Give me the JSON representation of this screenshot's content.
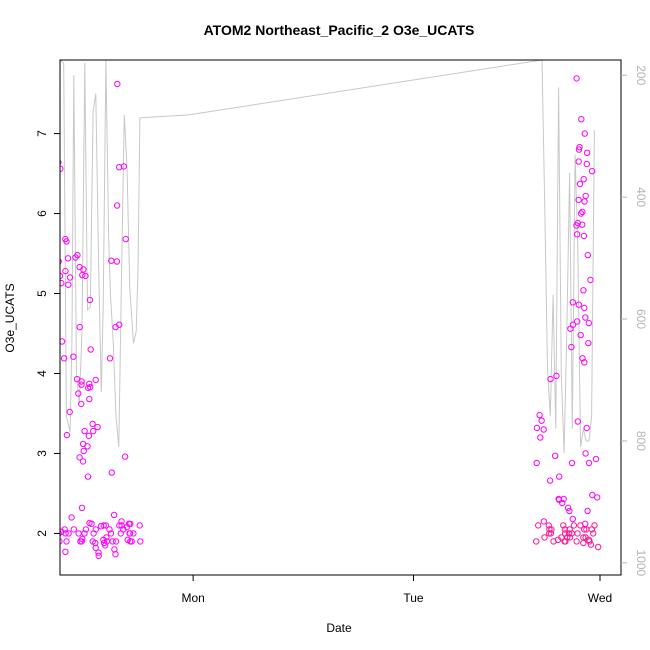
{
  "chart_data": {
    "type": "scatter",
    "title": "ATOM2 Northeast_Pacific_2 O3e_UCATS",
    "xlabel": "Date",
    "ylabel": "O3e_UCATS",
    "x_ticks": [
      "Mon",
      "Tue",
      "Wed"
    ],
    "x_range_hours": [
      -14.5,
      46.6
    ],
    "y_left_ticks": [
      "2",
      "3",
      "4",
      "5",
      "6",
      "7"
    ],
    "y_left_range": [
      1.48,
      7.92
    ],
    "y_right_ticks": [
      "200",
      "400",
      "600",
      "800",
      "1000"
    ],
    "y_right_range_inverted": [
      175,
      1020
    ],
    "grid": false,
    "colors": {
      "points": "#ff00ff",
      "points_dense": "#ff1493",
      "pressure_line": "#c8c8c8",
      "axis": "#000000",
      "right_axis": "#b4b4b4"
    },
    "series": [
      {
        "kind": "points",
        "axis": "left",
        "x_hours": [
          -14.3,
          -14.2,
          -14.1,
          -14.0,
          -14.0,
          -13.9,
          -13.8,
          -13.7,
          -13.6,
          -13.6,
          -13.5,
          -13.4,
          -13.3,
          -13.3,
          -13.2,
          -13.1,
          -13.0,
          -12.9,
          -12.8,
          -12.7,
          -12.6,
          -12.5,
          -12.4,
          -12.3,
          -12.2,
          -12.0,
          -11.9,
          -11.8,
          -11.7,
          -11.7,
          -11.6,
          -11.5,
          -11.5,
          -11.4,
          -11.3,
          -11.2,
          -11.1,
          -11.0,
          -10.9,
          -10.8,
          -10.7,
          -10.6,
          -10.6,
          -10.5,
          -10.4,
          -10.3,
          -10.2,
          -10.1,
          -10.0,
          -9.9,
          -9.8,
          -9.7,
          -9.6,
          -9.5,
          -9.4,
          -9.3,
          -9.2,
          -9.1,
          -9.0,
          -8.9,
          -8.8,
          -8.7,
          -8.6,
          -8.5,
          -8.4,
          -8.3,
          -8.2,
          -8.1,
          -8.0,
          -7.9,
          -7.8,
          -7.7,
          -7.6,
          -7.5,
          -7.4,
          -7.3,
          -7.2,
          -7.1,
          -7.0,
          -6.9,
          -6.8,
          -6.7,
          -6.6,
          -6.5,
          -6.4,
          -6.3,
          -6.2,
          -6.1,
          -6.0,
          -5.9,
          -5.8,
          -5.7,
          -5.6,
          -5.5,
          -5.4,
          -5.3,
          -5.2,
          -5.1,
          -5.0,
          -4.9,
          -4.8,
          -4.7,
          -4.6,
          -4.5,
          -4.4,
          -4.3,
          -4.2,
          -4.1,
          -4.0,
          -3.9,
          -3.8,
          -3.7,
          -3.6,
          -3.5,
          -3.4,
          -3.3,
          -3.2,
          -3.1,
          -3.0,
          -2.9,
          -2.8,
          -2.7,
          -2.6,
          -2.5,
          -2.4,
          -2.3,
          -2.2,
          -2.1,
          -2.0,
          -1.9,
          -1.8,
          -1.7,
          -1.6,
          -1.5,
          -1.4,
          -1.3,
          -1.2,
          -1.1,
          -1.0,
          -0.9,
          -0.8,
          -0.7,
          -0.6,
          -0.5,
          -0.4,
          -0.3,
          -0.2,
          -0.1,
          -0.1,
          -0.1,
          -0.1,
          -0.1,
          -0.1,
          -0.1,
          -0.1,
          -0.1,
          -0.1,
          -0.1,
          -0.1,
          -0.1,
          -0.1,
          -0.1,
          -0.1,
          -0.1,
          -0.1,
          -0.1,
          -0.1,
          -0.1,
          -0.1
        ],
        "x_hours_note_skip": true,
        "clusters": [
          {
            "x": -13.9,
            "y": [
              1.77,
              1.9,
              1.9,
              2.02,
              2.05,
              2.0,
              2.0,
              2.2,
              3.23,
              4.19,
              4.4,
              5.2,
              5.44,
              5.4,
              5.28,
              5.13,
              5.11,
              5.22,
              5.65,
              5.68,
              6.56,
              6.64
            ]
          },
          {
            "x": -12.9,
            "y": [
              1.9,
              1.93,
              2.0,
              2.05,
              2.32,
              3.52,
              4.21,
              5.45,
              5.48
            ]
          },
          {
            "x": -11.9,
            "y": [
              1.9,
              2.0,
              2.12,
              2.9,
              2.95,
              3.28,
              3.62,
              3.75,
              3.82,
              3.86,
              3.9,
              3.93,
              4.3,
              4.58,
              4.92,
              5.3,
              5.33,
              5.22,
              5.23,
              2.71
            ]
          },
          {
            "x": -11.2,
            "y": [
              1.9,
              2.0,
              2.05,
              2.13,
              3.03,
              3.12,
              3.22,
              3.28,
              3.37,
              3.33,
              3.09,
              3.68,
              3.83,
              3.87,
              3.92
            ]
          },
          {
            "x": -10.2,
            "y": [
              1.72,
              1.76,
              1.82,
              1.88,
              1.92,
              2.0,
              2.05,
              2.1,
              1.85,
              1.9
            ]
          },
          {
            "x": -9.2,
            "y": [
              1.74,
              1.8,
              1.9,
              2.0,
              2.05,
              2.09,
              2.1,
              1.95,
              1.88
            ]
          },
          {
            "x": -8.2,
            "y": [
              1.9,
              2.0,
              2.1,
              2.23,
              2.96,
              4.19,
              4.58,
              4.61,
              5.4,
              5.41,
              5.68,
              6.1,
              6.59,
              6.58,
              7.62,
              2.76
            ]
          },
          {
            "x": -7.2,
            "y": [
              1.9,
              2.0,
              2.05,
              2.1,
              2.15,
              2.12,
              1.9,
              2.0
            ]
          },
          {
            "x": -6.4,
            "y": [
              1.9,
              2.0,
              2.1,
              2.12,
              2.08,
              1.92
            ]
          },
          {
            "x": 38.2,
            "y": [
              1.9,
              1.95,
              2.0,
              2.05,
              2.1,
              2.15,
              2.88,
              3.2,
              3.3,
              3.32,
              3.41,
              3.48
            ]
          },
          {
            "x": 39.6,
            "y": [
              1.9,
              1.95,
              2.0,
              2.05,
              2.1,
              2.43,
              2.66,
              2.97,
              3.93,
              3.97
            ]
          },
          {
            "x": 40.6,
            "y": [
              1.9,
              1.92,
              1.95,
              2.0,
              2.05,
              2.1,
              2.18,
              2.28,
              2.32,
              2.38,
              2.43,
              2.42,
              2.88,
              2.71
            ]
          },
          {
            "x": 41.3,
            "y": [
              1.9,
              1.95,
              2.0,
              2.05,
              2.1,
              4.33,
              4.56,
              4.61,
              4.86,
              4.89
            ]
          },
          {
            "x": 41.9,
            "y": [
              1.9,
              2.0,
              2.05,
              2.1,
              3.4,
              4.14,
              4.48,
              4.65,
              4.7,
              5.72,
              5.85,
              5.88,
              6.0,
              6.02,
              6.15,
              6.17,
              6.22,
              6.37
            ]
          },
          {
            "x": 42.6,
            "y": [
              1.9,
              1.95,
              2.0,
              2.05,
              2.12,
              3.32,
              4.19,
              4.38,
              4.63,
              4.82,
              5.04,
              5.17,
              5.48,
              5.74,
              5.86,
              6.43,
              6.53,
              6.62,
              6.65,
              6.76,
              6.8,
              6.83,
              7.0,
              7.18,
              7.69
            ]
          },
          {
            "x": 43.3,
            "y": [
              1.83,
              1.86,
              1.88,
              1.92,
              1.95,
              2.0,
              2.05,
              2.1,
              2.28,
              2.45,
              2.48,
              2.88,
              2.93,
              3.0
            ]
          }
        ]
      },
      {
        "kind": "line",
        "axis": "right",
        "name_hidden": true,
        "x_hours": [
          -14.5,
          -14.1,
          -13.8,
          -13.4,
          -13.2,
          -13.0,
          -12.7,
          -12.4,
          -12.1,
          -11.8,
          -11.5,
          -11.2,
          -10.9,
          -10.6,
          -10.3,
          -10.0,
          -9.8,
          -9.5,
          -9.2,
          -9.0,
          -8.7,
          -8.4,
          -8.1,
          -7.8,
          -7.5,
          -7.2,
          -6.9,
          -6.5,
          -6.2,
          -6.0,
          -5.8,
          -0.5,
          38.0,
          38.3,
          38.6,
          38.9,
          39.2,
          39.5,
          39.8,
          40.1,
          40.4,
          40.7,
          41.0,
          41.3,
          41.6,
          41.9,
          42.2,
          42.5,
          42.8,
          43.1,
          43.4,
          43.7
        ],
        "y": [
          175,
          180,
          760,
          785,
          640,
          200,
          690,
          740,
          620,
          180,
          585,
          580,
          260,
          230,
          510,
          720,
          580,
          175,
          470,
          560,
          640,
          760,
          810,
          530,
          265,
          350,
          550,
          640,
          620,
          520,
          270,
          265,
          175,
          420,
          680,
          760,
          560,
          780,
          220,
          690,
          820,
          620,
          360,
          780,
          330,
          480,
          810,
          780,
          800,
          800,
          760,
          290
        ]
      }
    ]
  }
}
